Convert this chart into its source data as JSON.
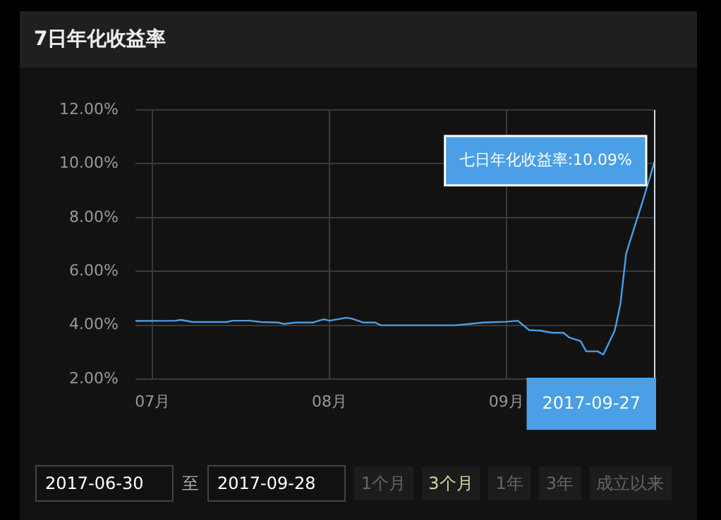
{
  "chart_data": {
    "type": "line",
    "title": "7日年化收益率",
    "x": [
      "2017-06-28",
      "2017-07-05",
      "2017-07-06",
      "2017-07-08",
      "2017-07-14",
      "2017-07-15",
      "2017-07-18",
      "2017-07-20",
      "2017-07-23",
      "2017-07-24",
      "2017-07-26",
      "2017-07-29",
      "2017-07-31",
      "2017-08-01",
      "2017-08-04",
      "2017-08-05",
      "2017-08-07",
      "2017-08-09",
      "2017-08-10",
      "2017-08-23",
      "2017-08-28",
      "2017-09-01",
      "2017-09-03",
      "2017-09-05",
      "2017-09-07",
      "2017-09-09",
      "2017-09-11",
      "2017-09-12",
      "2017-09-14",
      "2017-09-15",
      "2017-09-17",
      "2017-09-18",
      "2017-09-20",
      "2017-09-21",
      "2017-09-22",
      "2017-09-25",
      "2017-09-27"
    ],
    "series": [
      {
        "color": "#4a9fe6",
        "values": [
          4.16,
          4.17,
          4.2,
          4.12,
          4.12,
          4.17,
          4.17,
          4.12,
          4.1,
          4.05,
          4.1,
          4.1,
          4.22,
          4.17,
          4.28,
          4.24,
          4.1,
          4.1,
          4.0,
          4.0,
          4.1,
          4.13,
          4.17,
          3.82,
          3.8,
          3.72,
          3.72,
          3.55,
          3.41,
          3.03,
          3.03,
          2.91,
          3.8,
          4.79,
          6.67,
          8.68,
          10.09
        ]
      }
    ],
    "xlim": [
      "2017-06-28",
      "2017-09-27"
    ],
    "xticks": [
      {
        "value": "2017-07-01",
        "label": "07月"
      },
      {
        "value": "2017-08-01",
        "label": "08月"
      },
      {
        "value": "2017-09-01",
        "label": "09月"
      }
    ],
    "ylim": [
      2,
      12
    ],
    "yticks": [
      {
        "value": 2,
        "label": "2.00%"
      },
      {
        "value": 4,
        "label": "4.00%"
      },
      {
        "value": 6,
        "label": "6.00%"
      },
      {
        "value": 8,
        "label": "8.00%"
      },
      {
        "value": 10,
        "label": "10.00%"
      },
      {
        "value": 12,
        "label": "12.00%"
      }
    ],
    "grid": true,
    "legend": false,
    "marker": "none",
    "line_style": "solid",
    "ref_lines": [
      {
        "axis": "x",
        "value": "2017-09-27",
        "label": "2017-09-27",
        "color": "#cfd8e3"
      }
    ],
    "annotations": [
      {
        "text": "七日年化收益率:10.09%",
        "x": "2017-09-27",
        "y": 10.09
      },
      "2017-06-30",
      "至",
      "2017-09-28",
      "1个月",
      "3个月",
      "1年",
      "3年",
      "成立以来"
    ]
  }
}
